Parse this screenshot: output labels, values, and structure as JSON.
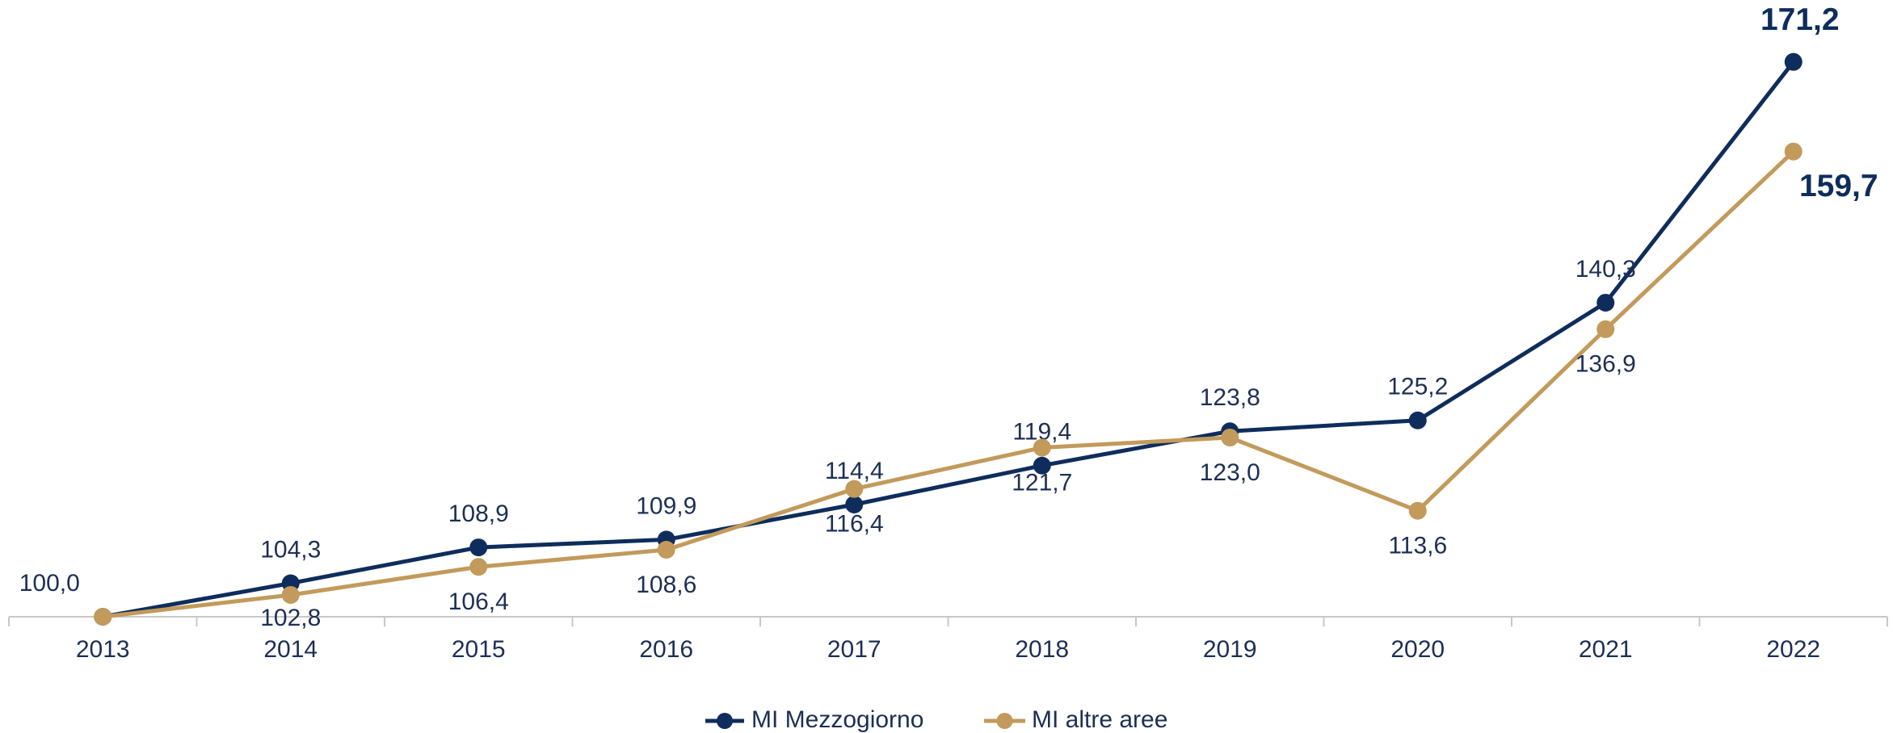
{
  "chart_data": {
    "type": "line",
    "categories": [
      "2013",
      "2014",
      "2015",
      "2016",
      "2017",
      "2018",
      "2019",
      "2020",
      "2021",
      "2022"
    ],
    "series": [
      {
        "name": "MI Mezzogiorno",
        "color": "#0e2d5c",
        "values": [
          100.0,
          104.3,
          108.9,
          109.9,
          114.4,
          119.4,
          123.8,
          125.2,
          140.3,
          171.2
        ],
        "value_labels": [
          "100,0",
          "104,3",
          "108,9",
          "109,9",
          "114,4",
          "119,4",
          "123,8",
          "125,2",
          "140,3",
          "171,2"
        ]
      },
      {
        "name": "MI altre aree",
        "color": "#c29a5b",
        "values": [
          100.0,
          102.8,
          106.4,
          108.6,
          116.4,
          121.7,
          123.0,
          113.6,
          136.9,
          159.7
        ],
        "value_labels": [
          "100,0",
          "102,8",
          "106,4",
          "108,6",
          "116,4",
          "121,7",
          "123,0",
          "113,6",
          "136,9",
          "159,7"
        ]
      }
    ],
    "ylim": [
      100,
      175
    ],
    "legend": "bottom"
  }
}
